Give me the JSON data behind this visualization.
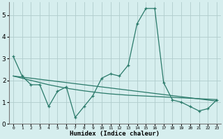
{
  "xlabel": "Humidex (Indice chaleur)",
  "x_values": [
    0,
    1,
    2,
    3,
    4,
    5,
    6,
    7,
    8,
    9,
    10,
    11,
    12,
    13,
    14,
    15,
    16,
    17,
    18,
    19,
    20,
    21,
    22,
    23
  ],
  "x_labels": [
    "0",
    "1",
    "2",
    "3",
    "4",
    "5",
    "6",
    "7",
    "8",
    "9",
    "10",
    "11",
    "12",
    "13",
    "14",
    "15",
    "16",
    "17",
    "18",
    "19",
    "20",
    "21",
    "22",
    "23"
  ],
  "line1_y": [
    3.1,
    2.2,
    1.8,
    1.8,
    0.8,
    1.5,
    1.7,
    0.3,
    0.8,
    1.3,
    2.1,
    2.3,
    2.2,
    2.7,
    4.6,
    5.3,
    5.3,
    1.9,
    1.1,
    1.0,
    0.8,
    0.6,
    0.7,
    1.1
  ],
  "line2_y": [
    2.2,
    2.15,
    2.1,
    2.05,
    2.0,
    1.95,
    1.9,
    1.85,
    1.8,
    1.75,
    1.7,
    1.65,
    1.6,
    1.55,
    1.5,
    1.45,
    1.4,
    1.35,
    1.3,
    1.25,
    1.2,
    1.15,
    1.1,
    1.05
  ],
  "line3_y": [
    2.2,
    2.1,
    2.0,
    1.9,
    1.8,
    1.72,
    1.64,
    1.58,
    1.52,
    1.47,
    1.42,
    1.38,
    1.35,
    1.32,
    1.3,
    1.28,
    1.26,
    1.24,
    1.22,
    1.2,
    1.18,
    1.16,
    1.14,
    1.12
  ],
  "line_color": "#2a7a6a",
  "bg_color": "#d6eeee",
  "grid_color": "#b0cccc",
  "ylim": [
    0,
    5.6
  ],
  "yticks": [
    0,
    1,
    2,
    3,
    4,
    5
  ],
  "marker": "+"
}
